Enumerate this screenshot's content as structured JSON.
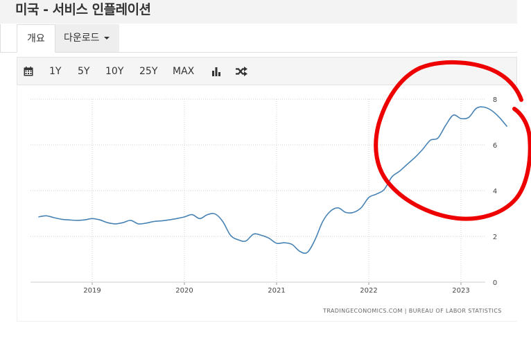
{
  "page": {
    "title": "미국 - 서비스 인플레이션"
  },
  "tabs": [
    {
      "label": "개요"
    },
    {
      "label": "다운로드"
    }
  ],
  "toolbar": {
    "ranges": [
      "1Y",
      "5Y",
      "10Y",
      "25Y",
      "MAX"
    ],
    "icons": [
      "calendar-icon",
      "bar-chart-icon",
      "shuffle-icon"
    ]
  },
  "chart_data": {
    "type": "line",
    "title": "",
    "xlabel": "",
    "ylabel": "",
    "ylim": [
      0,
      8
    ],
    "yticks": [
      0,
      2,
      4,
      6,
      8
    ],
    "xtick_labels": [
      "2019",
      "2020",
      "2021",
      "2022",
      "2023"
    ],
    "grid": true,
    "series": [
      {
        "color": "#4682b4",
        "points": [
          [
            "2018-06",
            2.85
          ],
          [
            "2018-07",
            2.9
          ],
          [
            "2018-08",
            2.82
          ],
          [
            "2018-09",
            2.75
          ],
          [
            "2018-10",
            2.72
          ],
          [
            "2018-11",
            2.7
          ],
          [
            "2018-12",
            2.72
          ],
          [
            "2019-01",
            2.78
          ],
          [
            "2019-02",
            2.72
          ],
          [
            "2019-03",
            2.6
          ],
          [
            "2019-04",
            2.55
          ],
          [
            "2019-05",
            2.6
          ],
          [
            "2019-06",
            2.7
          ],
          [
            "2019-07",
            2.55
          ],
          [
            "2019-08",
            2.58
          ],
          [
            "2019-09",
            2.65
          ],
          [
            "2019-10",
            2.68
          ],
          [
            "2019-11",
            2.72
          ],
          [
            "2019-12",
            2.78
          ],
          [
            "2020-01",
            2.85
          ],
          [
            "2020-02",
            2.95
          ],
          [
            "2020-03",
            2.78
          ],
          [
            "2020-04",
            2.95
          ],
          [
            "2020-05",
            2.98
          ],
          [
            "2020-06",
            2.65
          ],
          [
            "2020-07",
            2.05
          ],
          [
            "2020-08",
            1.85
          ],
          [
            "2020-09",
            1.8
          ],
          [
            "2020-10",
            2.1
          ],
          [
            "2020-11",
            2.05
          ],
          [
            "2020-12",
            1.92
          ],
          [
            "2021-01",
            1.7
          ],
          [
            "2021-02",
            1.72
          ],
          [
            "2021-03",
            1.65
          ],
          [
            "2021-04",
            1.35
          ],
          [
            "2021-05",
            1.3
          ],
          [
            "2021-06",
            1.85
          ],
          [
            "2021-07",
            2.65
          ],
          [
            "2021-08",
            3.1
          ],
          [
            "2021-09",
            3.25
          ],
          [
            "2021-10",
            3.05
          ],
          [
            "2021-11",
            3.05
          ],
          [
            "2021-12",
            3.25
          ],
          [
            "2022-01",
            3.7
          ],
          [
            "2022-02",
            3.85
          ],
          [
            "2022-03",
            4.05
          ],
          [
            "2022-04",
            4.6
          ],
          [
            "2022-05",
            4.85
          ],
          [
            "2022-06",
            5.15
          ],
          [
            "2022-07",
            5.45
          ],
          [
            "2022-08",
            5.8
          ],
          [
            "2022-09",
            6.2
          ],
          [
            "2022-10",
            6.3
          ],
          [
            "2022-11",
            6.85
          ],
          [
            "2022-12",
            7.3
          ],
          [
            "2023-01",
            7.15
          ],
          [
            "2023-02",
            7.2
          ],
          [
            "2023-03",
            7.6
          ],
          [
            "2023-04",
            7.65
          ],
          [
            "2023-05",
            7.5
          ],
          [
            "2023-06",
            7.2
          ],
          [
            "2023-07",
            6.8
          ]
        ]
      }
    ]
  },
  "source": {
    "text": "TRADINGECONOMICS.COM | BUREAU OF LABOR STATISTICS"
  },
  "annotation": {
    "color": "#ee0000"
  }
}
